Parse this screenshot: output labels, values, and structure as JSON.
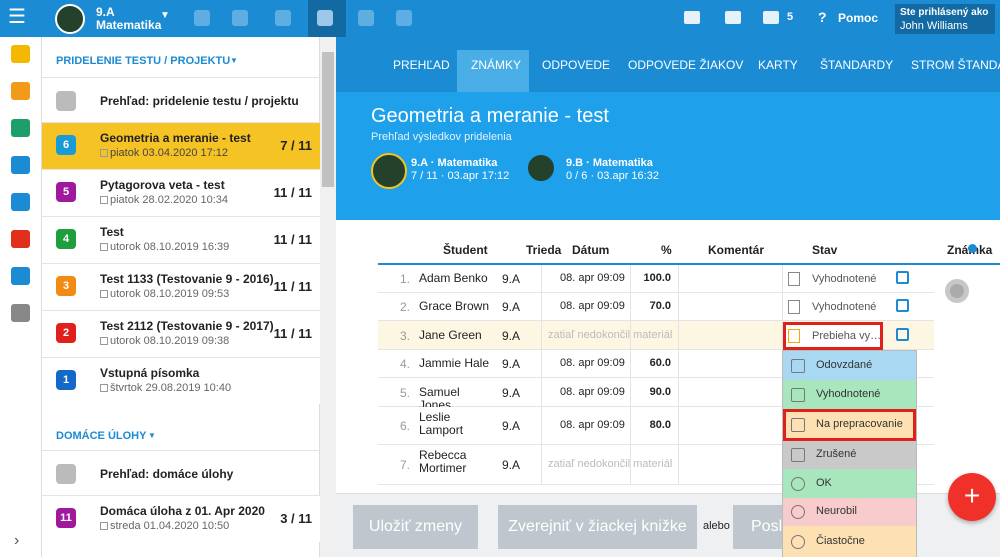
{
  "topbar": {
    "class": "9.A",
    "subject": "Matematika",
    "messages": "5",
    "help": "Pomoc",
    "login_label": "Ste prihlásený ako",
    "user": "John Williams"
  },
  "sidebar": {
    "tests_heading": "PRIDELENIE TESTU / PROJEKTU",
    "tests_overview": "Prehľad: pridelenie testu / projektu",
    "tests": [
      {
        "badge": "6",
        "title": "Geometria a meranie - test",
        "date": "piatok 03.04.2020 17:12",
        "score": "7 / 11",
        "color": "#1a9ad6"
      },
      {
        "badge": "5",
        "title": "Pytagorova veta - test",
        "date": "piatok 28.02.2020 10:34",
        "score": "11 / 11",
        "color": "#a0189c"
      },
      {
        "badge": "4",
        "title": "Test",
        "date": "utorok 08.10.2019 16:39",
        "score": "11 / 11",
        "color": "#1e9e3c"
      },
      {
        "badge": "3",
        "title": "Test 1133 (Testovanie 9 - 2016)",
        "date": "utorok 08.10.2019 09:53",
        "score": "11 / 11",
        "color": "#f28b14"
      },
      {
        "badge": "2",
        "title": "Test 2112 (Testovanie 9 - 2017)",
        "date": "utorok 08.10.2019 09:38",
        "score": "11 / 11",
        "color": "#e0201c"
      },
      {
        "badge": "1",
        "title": "Vstupná písomka",
        "date": "štvrtok 29.08.2019 10:40",
        "color": "#1468c8"
      }
    ],
    "homework_heading": "DOMÁCE ÚLOHY",
    "homework_overview": "Prehľad: domáce úlohy",
    "homework": [
      {
        "badge": "11",
        "title": "Domáca úloha z 01. Apr 2020",
        "date": "streda 01.04.2020 10:50",
        "score": "3 / 11",
        "color": "#a0189c"
      }
    ]
  },
  "tabs": [
    "PREHĽAD",
    "ZNÁMKY",
    "ODPOVEDE",
    "ODPOVEDE ŽIAKOV",
    "KARTY",
    "ŠTANDARDY",
    "STROM ŠTANDARDOV"
  ],
  "header": {
    "title": "Geometria a meranie - test",
    "subtitle": "Prehľad výsledkov pridelenia",
    "classes": [
      {
        "name": "9.A · Matematika",
        "info": "7 / 11 · 03.apr 17:12"
      },
      {
        "name": "9.B · Matematika",
        "info": "0 / 6 · 03.apr 16:32"
      }
    ]
  },
  "table": {
    "columns": [
      "Študent",
      "Trieda",
      "Dátum",
      "%",
      "Komentár",
      "Stav",
      "Známka"
    ],
    "rows": [
      {
        "num": "1.",
        "student": "Adam Benko",
        "class": "9.A",
        "date": "08. apr 09:09",
        "percent": "100.0",
        "status": "Vyhodnotené"
      },
      {
        "num": "2.",
        "student": "Grace Brown",
        "class": "9.A",
        "date": "08. apr 09:09",
        "percent": "70.0",
        "status": "Vyhodnotené"
      },
      {
        "num": "3.",
        "student": "Jane Green",
        "class": "9.A",
        "pending": "zatiaľ nedokončil materiál",
        "status": "Prebieha vy…"
      },
      {
        "num": "4.",
        "student": "Jammie Hale",
        "class": "9.A",
        "date": "08. apr 09:09",
        "percent": "60.0"
      },
      {
        "num": "5.",
        "student": "Samuel Jones",
        "class": "9.A",
        "date": "08. apr 09:09",
        "percent": "90.0"
      },
      {
        "num": "6.",
        "student": "Leslie Lamport",
        "class": "9.A",
        "date": "08. apr 09:09",
        "percent": "80.0"
      },
      {
        "num": "7.",
        "student": "Rebecca Mortimer",
        "class": "9.A",
        "pending": "zatiaľ nedokončil materiál"
      }
    ]
  },
  "status_menu": [
    {
      "label": "Odovzdané",
      "color": "#a9d9f2"
    },
    {
      "label": "Vyhodnotené",
      "color": "#a8e6bd"
    },
    {
      "label": "Na prepracovanie",
      "color": "#fde1b2"
    },
    {
      "label": "Zrušené",
      "color": "#c9c9c9"
    },
    {
      "label": "OK",
      "color": "#a8e6bd"
    },
    {
      "label": "Neurobil",
      "color": "#f8cccc"
    },
    {
      "label": "Čiastočne",
      "color": "#fde1b2"
    }
  ],
  "buttons": {
    "save": "Uložiť zmeny",
    "publish": "Zverejniť v žiackej knižke",
    "or": "alebo",
    "send": "Posl"
  }
}
